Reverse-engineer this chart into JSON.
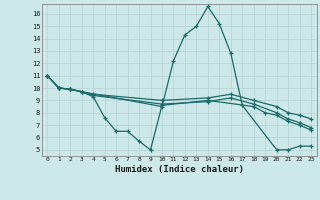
{
  "xlabel": "Humidex (Indice chaleur)",
  "bg_color": "#cce8e8",
  "line_color": "#1a6b6b",
  "grid_color": "#b8d4d4",
  "spine_color": "#888888",
  "xlim": [
    -0.5,
    23.5
  ],
  "ylim": [
    4.5,
    16.8
  ],
  "yticks": [
    5,
    6,
    7,
    8,
    9,
    10,
    11,
    12,
    13,
    14,
    15,
    16
  ],
  "xticks": [
    0,
    1,
    2,
    3,
    4,
    5,
    6,
    7,
    8,
    9,
    10,
    11,
    12,
    13,
    14,
    15,
    16,
    17,
    18,
    19,
    20,
    21,
    22,
    23
  ],
  "series": [
    {
      "x": [
        0,
        1,
        2,
        3,
        10,
        11,
        12,
        13,
        14,
        15,
        16,
        17,
        20,
        21,
        22,
        23
      ],
      "y": [
        11,
        10,
        9.9,
        9.7,
        8.5,
        12.2,
        14.3,
        15.0,
        16.6,
        15.2,
        12.8,
        8.6,
        5.0,
        5.0,
        5.3,
        5.3
      ]
    },
    {
      "x": [
        0,
        1,
        2,
        3,
        4,
        5,
        6,
        7,
        8,
        9,
        10,
        14,
        18,
        19,
        20,
        21,
        22,
        23
      ],
      "y": [
        11,
        10,
        9.9,
        9.7,
        9.3,
        7.6,
        6.5,
        6.5,
        5.7,
        5.0,
        8.6,
        9.0,
        8.5,
        8.0,
        7.8,
        7.3,
        7.0,
        6.6
      ]
    },
    {
      "x": [
        0,
        1,
        2,
        3,
        4,
        10,
        14,
        16,
        18,
        20,
        21,
        22,
        23
      ],
      "y": [
        11,
        10,
        9.9,
        9.7,
        9.5,
        9.0,
        9.2,
        9.5,
        9.0,
        8.5,
        8.0,
        7.8,
        7.5
      ]
    },
    {
      "x": [
        0,
        1,
        2,
        3,
        4,
        10,
        14,
        16,
        18,
        20,
        21,
        22,
        23
      ],
      "y": [
        11,
        10,
        9.9,
        9.7,
        9.4,
        8.7,
        8.9,
        9.2,
        8.7,
        8.0,
        7.5,
        7.2,
        6.8
      ]
    }
  ]
}
